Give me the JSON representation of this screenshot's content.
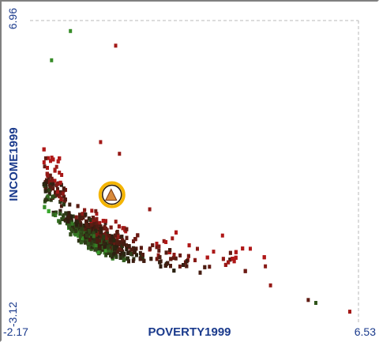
{
  "chart_data": {
    "type": "scatter",
    "xlabel": "POVERTY1999",
    "ylabel": "INCOME1999",
    "xlim": [
      -2.17,
      6.53
    ],
    "ylim": [
      -3.12,
      6.96
    ],
    "x_tick_labels": [
      "-2.17",
      "6.53"
    ],
    "y_tick_labels": [
      "-3.12",
      "6.96"
    ],
    "grid": false,
    "color_scheme": "green (low) to dark to red (high)",
    "colors": {
      "low": "#3aa82e",
      "mid": "#2a1e10",
      "high": "#b01818",
      "axis_text": "#1a3a8c",
      "highlight_ring": "#f4b400",
      "highlight_fill": "#d98a3a"
    },
    "highlight": {
      "x": 0.0,
      "y": 1.0
    },
    "outliers": [
      {
        "x": -1.1,
        "y": 6.6,
        "c": 0.1
      },
      {
        "x": 0.1,
        "y": 6.1,
        "c": 0.95
      },
      {
        "x": 6.3,
        "y": -3.0,
        "c": 0.95
      },
      {
        "x": 5.2,
        "y": -2.6,
        "c": 0.7
      },
      {
        "x": 5.4,
        "y": -2.7,
        "c": 0.3
      },
      {
        "x": 4.2,
        "y": -2.1,
        "c": 0.9
      },
      {
        "x": -0.3,
        "y": 2.8,
        "c": 0.95
      },
      {
        "x": 0.2,
        "y": 2.4,
        "c": 0.9
      },
      {
        "x": 1.0,
        "y": 0.5,
        "c": 0.9
      },
      {
        "x": -1.6,
        "y": 5.6,
        "c": 0.1
      }
    ]
  }
}
